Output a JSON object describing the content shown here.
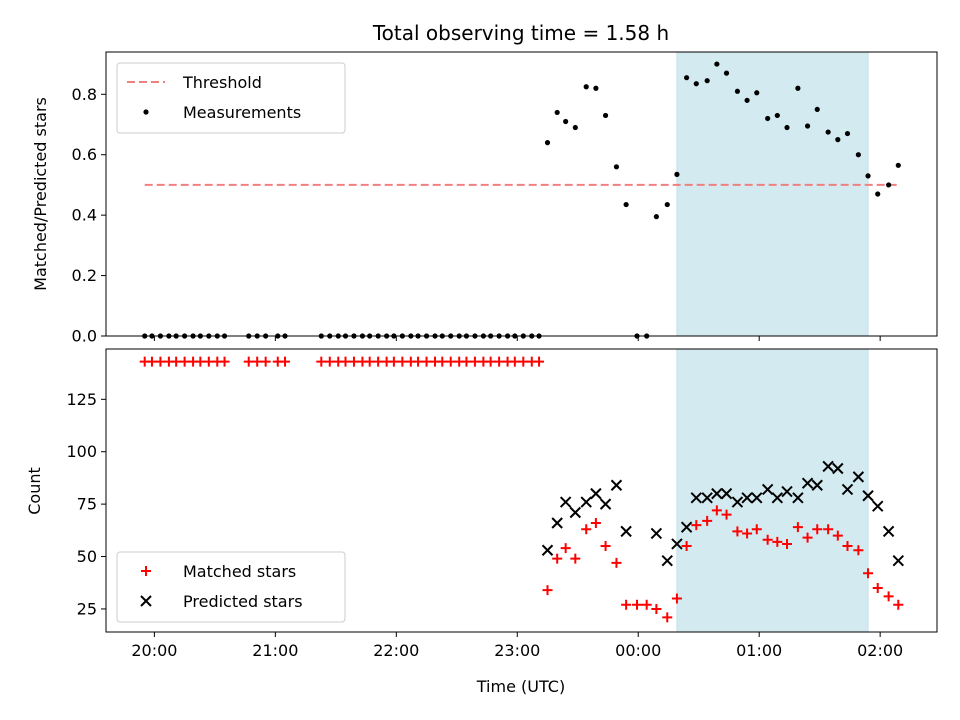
{
  "figure": {
    "title": "Total observing time = 1.58 h",
    "shaded_interval": [
      0.32,
      1.9
    ],
    "shade_color": "#d3eaf1",
    "x_tick_labels": [
      "20:00",
      "21:00",
      "22:00",
      "23:00",
      "00:00",
      "01:00",
      "02:00"
    ],
    "x_ticks": [
      -4,
      -3,
      -2,
      -1,
      0,
      1,
      2
    ]
  },
  "chart_data": [
    {
      "type": "scatter",
      "panel": "top",
      "title": "Total observing time = 1.58 h",
      "xlabel": "",
      "ylabel": "Matched/Predicted stars",
      "xlim": [
        -4.4,
        2.47
      ],
      "ylim": [
        0.0,
        0.94
      ],
      "yticks": [
        0.0,
        0.2,
        0.4,
        0.6,
        0.8
      ],
      "ytick_labels": [
        "0.0",
        "0.2",
        "0.4",
        "0.6",
        "0.8"
      ],
      "legend_position": "top-left",
      "threshold": {
        "name": "Threshold",
        "value": 0.5,
        "x_range": [
          -4.08,
          2.17
        ],
        "color": "#f08080"
      },
      "series": [
        {
          "name": "Measurements",
          "color": "#000000",
          "marker": "dot",
          "points": [
            [
              -4.08,
              0.0
            ],
            [
              -4.02,
              0.0
            ],
            [
              -3.95,
              0.0
            ],
            [
              -3.88,
              0.0
            ],
            [
              -3.82,
              0.0
            ],
            [
              -3.75,
              0.0
            ],
            [
              -3.68,
              0.0
            ],
            [
              -3.62,
              0.0
            ],
            [
              -3.55,
              0.0
            ],
            [
              -3.48,
              0.0
            ],
            [
              -3.42,
              0.0
            ],
            [
              -3.22,
              0.0
            ],
            [
              -3.15,
              0.0
            ],
            [
              -3.08,
              0.0
            ],
            [
              -2.98,
              0.0
            ],
            [
              -2.92,
              0.0
            ],
            [
              -2.62,
              0.0
            ],
            [
              -2.55,
              0.0
            ],
            [
              -2.48,
              0.0
            ],
            [
              -2.42,
              0.0
            ],
            [
              -2.35,
              0.0
            ],
            [
              -2.28,
              0.0
            ],
            [
              -2.22,
              0.0
            ],
            [
              -2.15,
              0.0
            ],
            [
              -2.08,
              0.0
            ],
            [
              -2.02,
              0.0
            ],
            [
              -1.95,
              0.0
            ],
            [
              -1.88,
              0.0
            ],
            [
              -1.82,
              0.0
            ],
            [
              -1.75,
              0.0
            ],
            [
              -1.68,
              0.0
            ],
            [
              -1.62,
              0.0
            ],
            [
              -1.55,
              0.0
            ],
            [
              -1.48,
              0.0
            ],
            [
              -1.42,
              0.0
            ],
            [
              -1.35,
              0.0
            ],
            [
              -1.28,
              0.0
            ],
            [
              -1.22,
              0.0
            ],
            [
              -1.15,
              0.0
            ],
            [
              -1.08,
              0.0
            ],
            [
              -1.02,
              0.0
            ],
            [
              -0.95,
              0.0
            ],
            [
              -0.88,
              0.0
            ],
            [
              -0.82,
              0.0
            ],
            [
              -0.75,
              0.64
            ],
            [
              -0.67,
              0.74
            ],
            [
              -0.6,
              0.71
            ],
            [
              -0.52,
              0.69
            ],
            [
              -0.43,
              0.825
            ],
            [
              -0.35,
              0.82
            ],
            [
              -0.27,
              0.73
            ],
            [
              -0.18,
              0.56
            ],
            [
              -0.1,
              0.435
            ],
            [
              -0.01,
              0.0
            ],
            [
              0.07,
              0.0
            ],
            [
              0.15,
              0.395
            ],
            [
              0.24,
              0.435
            ],
            [
              0.32,
              0.535
            ],
            [
              0.4,
              0.855
            ],
            [
              0.48,
              0.835
            ],
            [
              0.57,
              0.845
            ],
            [
              0.65,
              0.9
            ],
            [
              0.73,
              0.87
            ],
            [
              0.82,
              0.81
            ],
            [
              0.9,
              0.78
            ],
            [
              0.98,
              0.805
            ],
            [
              1.07,
              0.72
            ],
            [
              1.15,
              0.73
            ],
            [
              1.23,
              0.69
            ],
            [
              1.32,
              0.82
            ],
            [
              1.4,
              0.695
            ],
            [
              1.48,
              0.75
            ],
            [
              1.57,
              0.675
            ],
            [
              1.65,
              0.65
            ],
            [
              1.73,
              0.67
            ],
            [
              1.82,
              0.6
            ],
            [
              1.9,
              0.53
            ],
            [
              1.98,
              0.47
            ],
            [
              2.07,
              0.5
            ],
            [
              2.15,
              0.565
            ]
          ]
        }
      ]
    },
    {
      "type": "scatter",
      "panel": "bottom",
      "xlabel": "Time (UTC)",
      "ylabel": "Count",
      "xlim": [
        -4.4,
        2.47
      ],
      "ylim": [
        14,
        149
      ],
      "yticks": [
        25,
        50,
        75,
        100,
        125
      ],
      "ytick_labels": [
        "25",
        "50",
        "75",
        "100",
        "125"
      ],
      "legend_position": "bottom-left",
      "series": [
        {
          "name": "Matched stars",
          "color": "#ff0000",
          "marker": "plus",
          "points": [
            [
              -4.08,
              143
            ],
            [
              -4.02,
              143
            ],
            [
              -3.95,
              143
            ],
            [
              -3.88,
              143
            ],
            [
              -3.82,
              143
            ],
            [
              -3.75,
              143
            ],
            [
              -3.68,
              143
            ],
            [
              -3.62,
              143
            ],
            [
              -3.55,
              143
            ],
            [
              -3.48,
              143
            ],
            [
              -3.42,
              143
            ],
            [
              -3.22,
              143
            ],
            [
              -3.15,
              143
            ],
            [
              -3.08,
              143
            ],
            [
              -2.98,
              143
            ],
            [
              -2.92,
              143
            ],
            [
              -2.62,
              143
            ],
            [
              -2.55,
              143
            ],
            [
              -2.48,
              143
            ],
            [
              -2.42,
              143
            ],
            [
              -2.35,
              143
            ],
            [
              -2.28,
              143
            ],
            [
              -2.22,
              143
            ],
            [
              -2.15,
              143
            ],
            [
              -2.08,
              143
            ],
            [
              -2.02,
              143
            ],
            [
              -1.95,
              143
            ],
            [
              -1.88,
              143
            ],
            [
              -1.82,
              143
            ],
            [
              -1.75,
              143
            ],
            [
              -1.68,
              143
            ],
            [
              -1.62,
              143
            ],
            [
              -1.55,
              143
            ],
            [
              -1.48,
              143
            ],
            [
              -1.42,
              143
            ],
            [
              -1.35,
              143
            ],
            [
              -1.28,
              143
            ],
            [
              -1.22,
              143
            ],
            [
              -1.15,
              143
            ],
            [
              -1.08,
              143
            ],
            [
              -1.02,
              143
            ],
            [
              -0.95,
              143
            ],
            [
              -0.88,
              143
            ],
            [
              -0.82,
              143
            ],
            [
              -0.75,
              34
            ],
            [
              -0.67,
              49
            ],
            [
              -0.6,
              54
            ],
            [
              -0.52,
              49
            ],
            [
              -0.43,
              63
            ],
            [
              -0.35,
              66
            ],
            [
              -0.27,
              55
            ],
            [
              -0.18,
              47
            ],
            [
              -0.1,
              27
            ],
            [
              -0.01,
              27
            ],
            [
              0.07,
              27
            ],
            [
              0.15,
              25
            ],
            [
              0.24,
              21
            ],
            [
              0.32,
              30
            ],
            [
              0.4,
              55
            ],
            [
              0.48,
              65
            ],
            [
              0.57,
              67
            ],
            [
              0.65,
              72
            ],
            [
              0.73,
              70
            ],
            [
              0.82,
              62
            ],
            [
              0.9,
              61
            ],
            [
              0.98,
              63
            ],
            [
              1.07,
              58
            ],
            [
              1.15,
              57
            ],
            [
              1.23,
              56
            ],
            [
              1.32,
              64
            ],
            [
              1.4,
              59
            ],
            [
              1.48,
              63
            ],
            [
              1.57,
              63
            ],
            [
              1.65,
              60
            ],
            [
              1.73,
              55
            ],
            [
              1.82,
              53
            ],
            [
              1.9,
              42
            ],
            [
              1.98,
              35
            ],
            [
              2.07,
              31
            ],
            [
              2.15,
              27
            ]
          ]
        },
        {
          "name": "Predicted stars",
          "color": "#000000",
          "marker": "x",
          "points": [
            [
              -0.75,
              53
            ],
            [
              -0.67,
              66
            ],
            [
              -0.6,
              76
            ],
            [
              -0.52,
              71
            ],
            [
              -0.43,
              76
            ],
            [
              -0.35,
              80
            ],
            [
              -0.27,
              75
            ],
            [
              -0.18,
              84
            ],
            [
              -0.1,
              62
            ],
            [
              0.15,
              61
            ],
            [
              0.24,
              48
            ],
            [
              0.32,
              56
            ],
            [
              0.4,
              64
            ],
            [
              0.48,
              78
            ],
            [
              0.57,
              78
            ],
            [
              0.65,
              80
            ],
            [
              0.73,
              80
            ],
            [
              0.82,
              76
            ],
            [
              0.9,
              78
            ],
            [
              0.98,
              78
            ],
            [
              1.07,
              82
            ],
            [
              1.15,
              78
            ],
            [
              1.23,
              81
            ],
            [
              1.32,
              78
            ],
            [
              1.4,
              85
            ],
            [
              1.48,
              84
            ],
            [
              1.57,
              93
            ],
            [
              1.65,
              92
            ],
            [
              1.73,
              82
            ],
            [
              1.82,
              88
            ],
            [
              1.9,
              79
            ],
            [
              1.98,
              74
            ],
            [
              2.07,
              62
            ],
            [
              2.15,
              48
            ]
          ]
        }
      ]
    }
  ]
}
